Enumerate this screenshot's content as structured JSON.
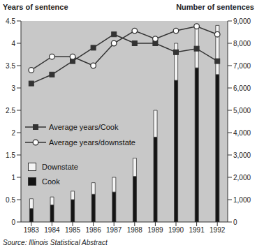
{
  "chart_data": {
    "type": "bar",
    "stacked": true,
    "grid": false,
    "legend": "upper left",
    "y_label": "Years of sentence",
    "y2_label": "Number of sentences",
    "annotations": [
      "Source: Illinois Statistical Abstract"
    ],
    "categories": [
      "1983",
      "1984",
      "1985",
      "1986",
      "1987",
      "1988",
      "1989",
      "1990",
      "1991",
      "1992"
    ],
    "ylim": [
      0,
      4.5
    ],
    "yticks": [
      0,
      0.5,
      1,
      1.5,
      2,
      2.5,
      3,
      3.5,
      4,
      4.5
    ],
    "y2lim": [
      0,
      9000
    ],
    "y2ticks": [
      0,
      {
        "value": 1000,
        "label": "1,000"
      },
      {
        "value": 2000,
        "label": "2,000"
      },
      {
        "value": 3000,
        "label": "3,000"
      },
      {
        "value": 4000,
        "label": "4,000"
      },
      {
        "value": 5000,
        "label": "5,000"
      },
      {
        "value": 6000,
        "label": "6,000"
      },
      {
        "value": 7000,
        "label": "7,000"
      },
      {
        "value": 8000,
        "label": "8,000"
      },
      {
        "value": 9000,
        "label": "9,000"
      }
    ],
    "series": [
      {
        "name": "Cook",
        "type": "bar",
        "axis": "y2",
        "color": "#141414",
        "values": [
          600,
          760,
          1000,
          1240,
          1340,
          2040,
          3800,
          6340,
          6900,
          6600
        ]
      },
      {
        "name": "Downstate",
        "type": "bar",
        "axis": "y2",
        "color": "#f4f4f4",
        "values": [
          440,
          360,
          380,
          520,
          660,
          820,
          1200,
          1660,
          1800,
          2200
        ]
      },
      {
        "name": "Average years/Cook",
        "type": "line",
        "marker": "square",
        "color": "#333333",
        "values": [
          3.1,
          3.3,
          3.6,
          3.9,
          4.2,
          4.0,
          4.0,
          3.8,
          3.88,
          3.6
        ]
      },
      {
        "name": "Average years/downstate",
        "type": "line",
        "marker": "circle",
        "color": "#333333",
        "values": [
          3.4,
          3.7,
          3.7,
          3.5,
          4.0,
          4.28,
          4.1,
          4.28,
          4.38,
          4.2
        ]
      }
    ]
  }
}
